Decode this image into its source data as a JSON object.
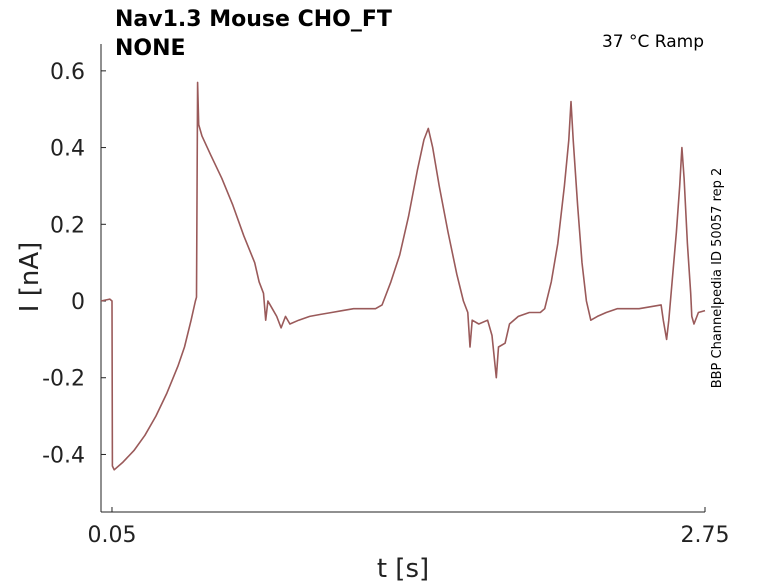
{
  "chart_data": {
    "type": "line",
    "title": [
      "Nav1.3  Mouse  CHO_FT",
      "NONE"
    ],
    "condition": "37 °C  Ramp",
    "side_label": "BBP Channelpedia ID 50057 rep 2",
    "xlabel": "t [s]",
    "ylabel": "I [nA]",
    "xlim": [
      0.0,
      2.75
    ],
    "ylim": [
      -0.55,
      0.67
    ],
    "xticks": [
      0.05,
      2.75
    ],
    "xtick_labels": [
      "0.05",
      "2.75"
    ],
    "yticks": [
      -0.4,
      -0.2,
      0,
      0.2,
      0.4,
      0.6
    ],
    "ytick_labels": [
      "-0.4",
      "-0.2",
      "0",
      "0.2",
      "0.4",
      "0.6"
    ],
    "grid": false,
    "line_color": "#9a5a5a",
    "series": [
      {
        "points": [
          [
            0.0,
            0.0
          ],
          [
            0.04,
            0.005
          ],
          [
            0.05,
            0.0
          ],
          [
            0.052,
            -0.43
          ],
          [
            0.06,
            -0.44
          ],
          [
            0.1,
            -0.42
          ],
          [
            0.15,
            -0.39
          ],
          [
            0.2,
            -0.35
          ],
          [
            0.25,
            -0.3
          ],
          [
            0.3,
            -0.24
          ],
          [
            0.35,
            -0.17
          ],
          [
            0.38,
            -0.12
          ],
          [
            0.41,
            -0.05
          ],
          [
            0.43,
            0.0
          ],
          [
            0.435,
            0.01
          ],
          [
            0.44,
            0.57
          ],
          [
            0.445,
            0.46
          ],
          [
            0.46,
            0.43
          ],
          [
            0.5,
            0.38
          ],
          [
            0.55,
            0.32
          ],
          [
            0.6,
            0.25
          ],
          [
            0.65,
            0.17
          ],
          [
            0.7,
            0.1
          ],
          [
            0.72,
            0.05
          ],
          [
            0.74,
            0.02
          ],
          [
            0.75,
            -0.05
          ],
          [
            0.76,
            0.0
          ],
          [
            0.78,
            -0.02
          ],
          [
            0.8,
            -0.04
          ],
          [
            0.82,
            -0.07
          ],
          [
            0.84,
            -0.04
          ],
          [
            0.86,
            -0.06
          ],
          [
            0.9,
            -0.05
          ],
          [
            0.95,
            -0.04
          ],
          [
            1.0,
            -0.035
          ],
          [
            1.05,
            -0.03
          ],
          [
            1.1,
            -0.025
          ],
          [
            1.15,
            -0.02
          ],
          [
            1.2,
            -0.02
          ],
          [
            1.25,
            -0.02
          ],
          [
            1.28,
            -0.01
          ],
          [
            1.32,
            0.05
          ],
          [
            1.36,
            0.12
          ],
          [
            1.4,
            0.22
          ],
          [
            1.44,
            0.34
          ],
          [
            1.47,
            0.42
          ],
          [
            1.49,
            0.45
          ],
          [
            1.51,
            0.4
          ],
          [
            1.54,
            0.3
          ],
          [
            1.58,
            0.18
          ],
          [
            1.62,
            0.07
          ],
          [
            1.65,
            0.0
          ],
          [
            1.67,
            -0.03
          ],
          [
            1.68,
            -0.12
          ],
          [
            1.69,
            -0.05
          ],
          [
            1.72,
            -0.06
          ],
          [
            1.76,
            -0.05
          ],
          [
            1.78,
            -0.09
          ],
          [
            1.8,
            -0.2
          ],
          [
            1.81,
            -0.12
          ],
          [
            1.84,
            -0.11
          ],
          [
            1.86,
            -0.06
          ],
          [
            1.9,
            -0.04
          ],
          [
            1.95,
            -0.03
          ],
          [
            2.0,
            -0.03
          ],
          [
            2.02,
            -0.02
          ],
          [
            2.05,
            0.05
          ],
          [
            2.08,
            0.15
          ],
          [
            2.11,
            0.3
          ],
          [
            2.13,
            0.42
          ],
          [
            2.14,
            0.52
          ],
          [
            2.15,
            0.42
          ],
          [
            2.17,
            0.25
          ],
          [
            2.19,
            0.1
          ],
          [
            2.21,
            0.0
          ],
          [
            2.23,
            -0.05
          ],
          [
            2.26,
            -0.04
          ],
          [
            2.3,
            -0.03
          ],
          [
            2.35,
            -0.02
          ],
          [
            2.4,
            -0.02
          ],
          [
            2.45,
            -0.02
          ],
          [
            2.5,
            -0.015
          ],
          [
            2.55,
            -0.01
          ],
          [
            2.56,
            -0.05
          ],
          [
            2.575,
            -0.1
          ],
          [
            2.585,
            -0.05
          ],
          [
            2.6,
            0.05
          ],
          [
            2.62,
            0.18
          ],
          [
            2.635,
            0.3
          ],
          [
            2.645,
            0.4
          ],
          [
            2.655,
            0.32
          ],
          [
            2.67,
            0.15
          ],
          [
            2.685,
            0.02
          ],
          [
            2.69,
            -0.04
          ],
          [
            2.7,
            -0.06
          ],
          [
            2.72,
            -0.03
          ],
          [
            2.75,
            -0.025
          ]
        ]
      }
    ]
  }
}
